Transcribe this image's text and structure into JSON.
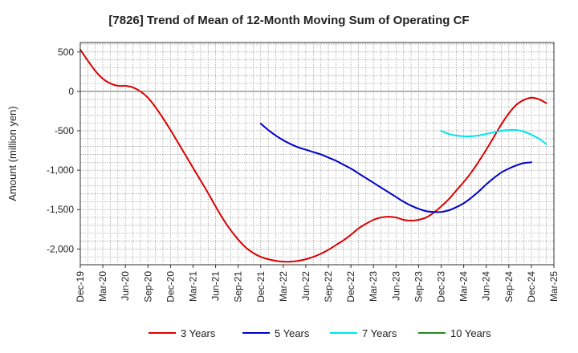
{
  "chart_data": {
    "type": "line",
    "title": "[7826]  Trend of Mean of 12-Month Moving Sum of Operating CF",
    "ylabel": "Amount (million yen)",
    "xlabel": "",
    "ylim": [
      -2200,
      620
    ],
    "yticks": [
      500,
      0,
      -500,
      -1000,
      -1500,
      -2000
    ],
    "ytick_labels": [
      "500",
      "0",
      "-500",
      "-1,000",
      "-1,500",
      "-2,000"
    ],
    "x_tick_labels": [
      "Dec-19",
      "Mar-20",
      "Jun-20",
      "Sep-20",
      "Dec-20",
      "Mar-21",
      "Jun-21",
      "Sep-21",
      "Dec-21",
      "Mar-22",
      "Jun-22",
      "Sep-22",
      "Dec-22",
      "Mar-23",
      "Jun-23",
      "Sep-23",
      "Dec-23",
      "Mar-24",
      "Jun-24",
      "Sep-24",
      "Dec-24",
      "Mar-25"
    ],
    "x_start": "Dec-19",
    "months_total": 63,
    "grid": true,
    "legend_position": "bottom",
    "series": [
      {
        "name": "3 Years",
        "color": "#dd0000",
        "start_month": 0,
        "values": [
          530,
          390,
          260,
          160,
          100,
          70,
          70,
          50,
          0,
          -80,
          -200,
          -340,
          -490,
          -650,
          -810,
          -970,
          -1130,
          -1290,
          -1460,
          -1620,
          -1760,
          -1880,
          -1980,
          -2050,
          -2100,
          -2130,
          -2150,
          -2160,
          -2160,
          -2150,
          -2130,
          -2100,
          -2060,
          -2010,
          -1950,
          -1890,
          -1820,
          -1740,
          -1680,
          -1630,
          -1600,
          -1590,
          -1600,
          -1630,
          -1640,
          -1630,
          -1600,
          -1540,
          -1460,
          -1370,
          -1260,
          -1150,
          -1030,
          -890,
          -740,
          -580,
          -420,
          -280,
          -170,
          -110,
          -80,
          -100,
          -150
        ]
      },
      {
        "name": "5 Years",
        "color": "#0000cc",
        "start_month": 24,
        "values": [
          -410,
          -490,
          -560,
          -620,
          -670,
          -710,
          -740,
          -770,
          -800,
          -840,
          -880,
          -930,
          -980,
          -1040,
          -1100,
          -1160,
          -1220,
          -1280,
          -1340,
          -1400,
          -1450,
          -1490,
          -1520,
          -1530,
          -1530,
          -1510,
          -1470,
          -1420,
          -1350,
          -1270,
          -1180,
          -1100,
          -1030,
          -980,
          -940,
          -910,
          -900
        ]
      },
      {
        "name": "7 Years",
        "color": "#00e5ee",
        "start_month": 48,
        "values": [
          -500,
          -540,
          -560,
          -570,
          -570,
          -560,
          -540,
          -520,
          -500,
          -490,
          -490,
          -510,
          -550,
          -600,
          -670
        ]
      },
      {
        "name": "10 Years",
        "color": "#228b22",
        "start_month": 0,
        "values": []
      }
    ]
  }
}
